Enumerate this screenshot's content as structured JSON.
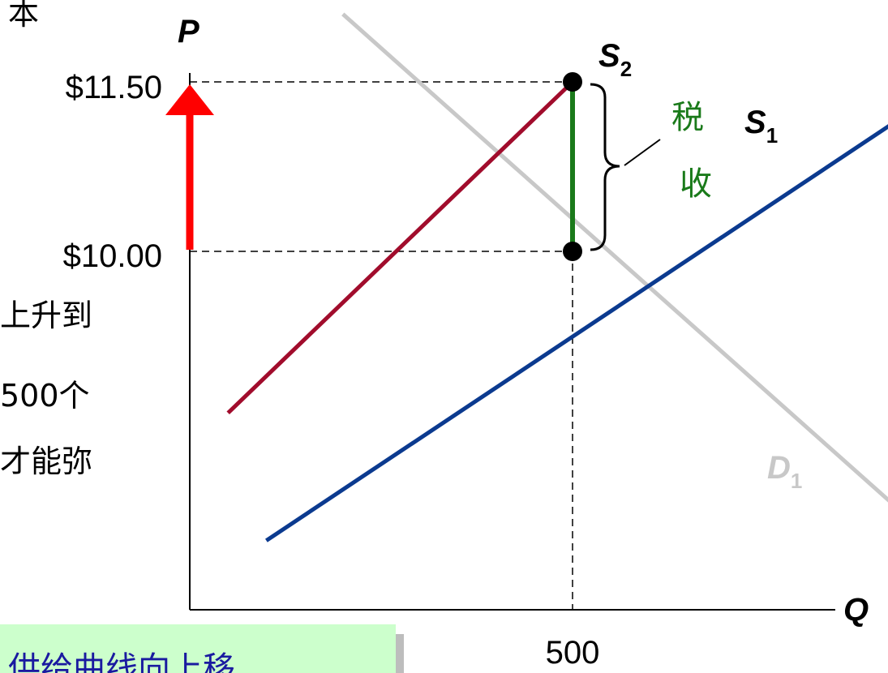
{
  "chart_data": {
    "type": "line",
    "title": "",
    "xlabel": "Q",
    "ylabel": "P",
    "x_ticks": [
      "500"
    ],
    "y_ticks": [
      "$10.00",
      "$11.50"
    ],
    "series": [
      {
        "name": "S",
        "sub": "1",
        "color": "#0b3a8f",
        "points": [
          [
            100,
            7.44
          ],
          [
            920,
            11.14
          ]
        ]
      },
      {
        "name": "S",
        "sub": "2",
        "color": "#a10c2c",
        "points": [
          [
            50,
            8.57
          ],
          [
            500,
            11.5
          ]
        ]
      },
      {
        "name": "D",
        "sub": "1",
        "color": "#c8c8c8",
        "points": [
          [
            200,
            12.1
          ],
          [
            1025,
            7.12
          ]
        ]
      }
    ],
    "equilibria": [
      {
        "q": 500,
        "p": 10.0
      },
      {
        "q": 500,
        "p": 11.5
      }
    ],
    "tax_label": [
      "税",
      "收"
    ],
    "tax_color": "#1a7a1a",
    "arrow_color": "#ff0000"
  },
  "left_text": {
    "top_fragment": "本",
    "lines": [
      "上升到",
      "500个",
      "才能弥"
    ]
  },
  "caption": "供给曲线向上移"
}
